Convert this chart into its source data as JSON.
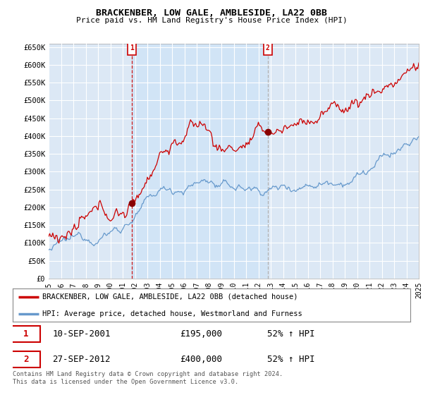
{
  "title": "BRACKENBER, LOW GALE, AMBLESIDE, LA22 0BB",
  "subtitle": "Price paid vs. HM Land Registry's House Price Index (HPI)",
  "plot_bg_color": "#dce8f5",
  "ylim": [
    0,
    660000
  ],
  "yticks": [
    0,
    50000,
    100000,
    150000,
    200000,
    250000,
    300000,
    350000,
    400000,
    450000,
    500000,
    550000,
    600000,
    650000
  ],
  "ytick_labels": [
    "£0",
    "£50K",
    "£100K",
    "£150K",
    "£200K",
    "£250K",
    "£300K",
    "£350K",
    "£400K",
    "£450K",
    "£500K",
    "£550K",
    "£600K",
    "£650K"
  ],
  "sale1_date": 2001.75,
  "sale1_price": 195000,
  "sale2_date": 2012.75,
  "sale2_price": 400000,
  "legend_line1_color": "#cc0000",
  "legend_line2_color": "#6699cc",
  "legend_line1_label": "BRACKENBER, LOW GALE, AMBLESIDE, LA22 0BB (detached house)",
  "legend_line2_label": "HPI: Average price, detached house, Westmorland and Furness",
  "table_row1": [
    "1",
    "10-SEP-2001",
    "£195,000",
    "52% ↑ HPI"
  ],
  "table_row2": [
    "2",
    "27-SEP-2012",
    "£400,000",
    "52% ↑ HPI"
  ],
  "footnote": "Contains HM Land Registry data © Crown copyright and database right 2024.\nThis data is licensed under the Open Government Licence v3.0.",
  "xmin": 1995,
  "xmax": 2025,
  "shade_color": "#d0e4f7",
  "vline1_color": "#cc0000",
  "vline2_color": "#aaaaaa"
}
